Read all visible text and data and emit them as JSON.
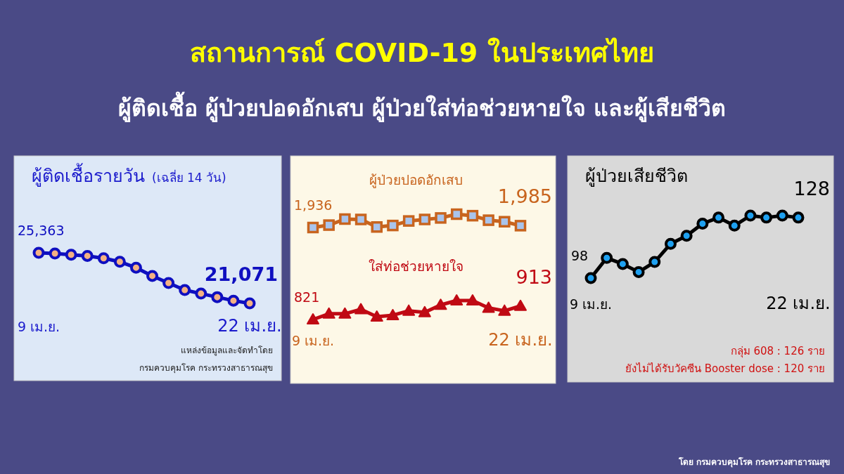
{
  "chart_data": [
    {
      "type": "other",
      "title": "สถานการณ์ COVID-19 ในประเทศไทย",
      "subtitle": "ผู้ติดเชื้อ ผู้ป่วยปอดอักเสบ ผู้ป่วยใส่ท่อช่วยหายใจ และผู้เสียชีวิต",
      "annotations": [
        "โดย กรมควบคุมโรค กระทรวงสาธารณสุข"
      ]
    },
    {
      "type": "line",
      "title": "ผู้ติดเชื้อรายวัน",
      "subtitle": "(เฉลี่ย 14 วัน)",
      "marker": "circle",
      "tick_labels": "x",
      "categories": [
        "9 เม.ย.",
        null,
        null,
        null,
        null,
        null,
        null,
        null,
        null,
        null,
        null,
        null,
        null,
        "22 เม.ย."
      ],
      "series": [
        {
          "color": "#0f0fc0",
          "values": [
            25363,
            25300,
            25200,
            25100,
            24900,
            24600,
            24100,
            23400,
            22800,
            22200,
            21900,
            21600,
            21300,
            21071
          ],
          "value_labels": [
            "25,363",
            null,
            null,
            null,
            null,
            null,
            null,
            null,
            null,
            null,
            null,
            null,
            null,
            "21,071"
          ]
        }
      ],
      "annotations": [
        "แหล่งข้อมูลและจัดทำโดย",
        "กรมควบคุมโรค กระทรวงสาธารณสุข"
      ]
    },
    {
      "type": "line",
      "tick_labels": false,
      "marker": "square",
      "categories": [
        null,
        null,
        null,
        null,
        null,
        null,
        null,
        null,
        null,
        null,
        null,
        null,
        null,
        null
      ],
      "series": [
        {
          "name": "ผู้ป่วยปอดอักเสบ",
          "color": "#c8641e",
          "values": [
            1936,
            2000,
            2160,
            2150,
            1950,
            1990,
            2110,
            2150,
            2190,
            2290,
            2250,
            2130,
            2090,
            1985
          ],
          "value_labels": [
            "1,936",
            null,
            null,
            null,
            null,
            null,
            null,
            null,
            null,
            null,
            null,
            null,
            null,
            "1,985"
          ]
        }
      ]
    },
    {
      "type": "line",
      "tick_labels": "x",
      "marker": "triangle",
      "categories": [
        "9 เม.ย.",
        null,
        null,
        null,
        null,
        null,
        null,
        null,
        null,
        null,
        null,
        null,
        null,
        "22 เม.ย."
      ],
      "series": [
        {
          "name": "ใส่ท่อช่วยหายใจ",
          "color": "#c00a14",
          "values": [
            821,
            860,
            860,
            890,
            840,
            850,
            880,
            870,
            920,
            950,
            950,
            900,
            880,
            913
          ],
          "value_labels": [
            "821",
            null,
            null,
            null,
            null,
            null,
            null,
            null,
            null,
            null,
            null,
            null,
            null,
            "913"
          ]
        }
      ]
    },
    {
      "type": "line",
      "title": "ผู้ป่วยเสียชีวิต",
      "marker": "circle",
      "tick_labels": "x",
      "categories": [
        "9 เม.ย.",
        null,
        null,
        null,
        null,
        null,
        null,
        null,
        null,
        null,
        null,
        null,
        null,
        "22 เม.ย."
      ],
      "series": [
        {
          "color": "#000000",
          "values": [
            98,
            108,
            105,
            101,
            106,
            115,
            119,
            125,
            128,
            124,
            129,
            128,
            129,
            128
          ],
          "value_labels": [
            "98",
            null,
            null,
            null,
            null,
            null,
            null,
            null,
            null,
            null,
            null,
            null,
            null,
            "128"
          ]
        }
      ],
      "annotations": [
        "กลุ่ม 608 : 126 ราย",
        "ยังไม่ได้รับวัคซีน Booster dose : 120 ราย"
      ]
    }
  ]
}
